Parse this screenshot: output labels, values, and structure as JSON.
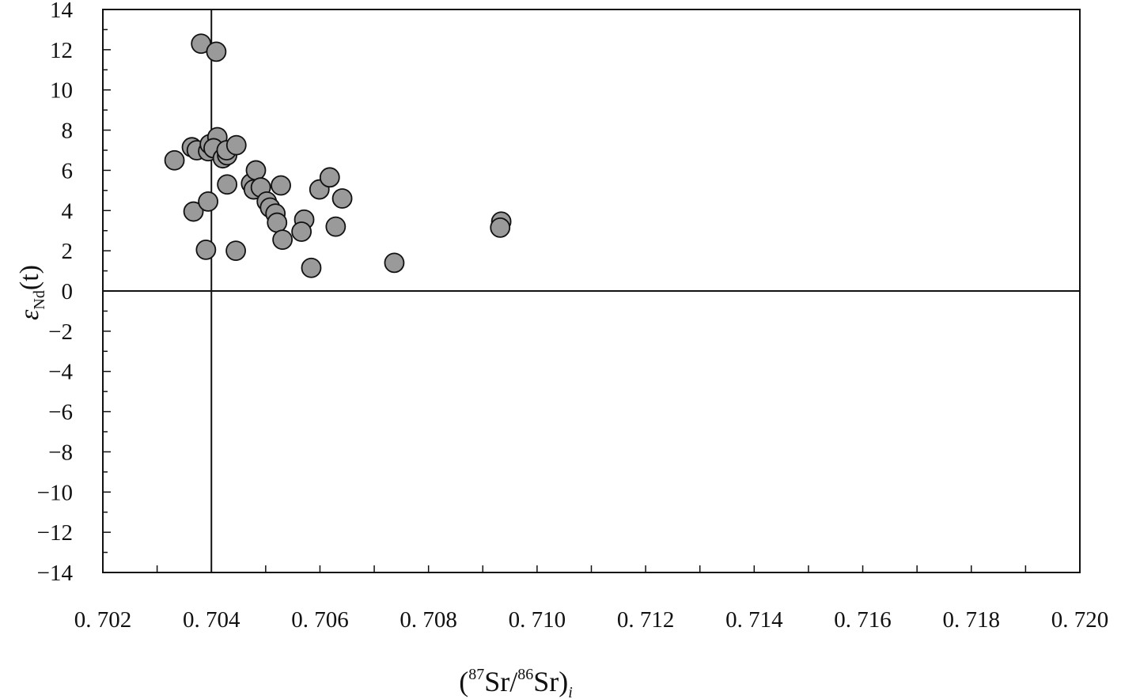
{
  "chart_data": {
    "type": "scatter",
    "xlabel": "(87Sr/86Sr)i",
    "xlabel_parts": {
      "open": "(",
      "sup1": "87",
      "mid": "Sr/",
      "sup2": "86",
      "close": "Sr)",
      "sub": "i"
    },
    "ylabel": "εNd(t)",
    "ylabel_parts": {
      "eps": "ε",
      "sub": "Nd",
      "rest": "(t)"
    },
    "xlim": [
      0.702,
      0.72
    ],
    "ylim": [
      -14,
      14
    ],
    "x_ticks": [
      "0. 702",
      "0. 704",
      "0. 706",
      "0. 708",
      "0. 710",
      "0. 712",
      "0. 714",
      "0. 716",
      "0. 718",
      "0. 720"
    ],
    "y_ticks": [
      "14",
      "12",
      "10",
      "8",
      "6",
      "4",
      "2",
      "0",
      "−2",
      "−4",
      "−6",
      "−8",
      "−10",
      "−12",
      "−14"
    ],
    "reference_lines": {
      "x": 0.704,
      "y": 0
    },
    "marker_color": "#9a9a9a",
    "grid": false,
    "points": [
      {
        "x": 0.70381,
        "y": 12.3
      },
      {
        "x": 0.70409,
        "y": 11.9
      },
      {
        "x": 0.70332,
        "y": 6.5
      },
      {
        "x": 0.70364,
        "y": 7.15
      },
      {
        "x": 0.70373,
        "y": 7.0
      },
      {
        "x": 0.70394,
        "y": 6.95
      },
      {
        "x": 0.70397,
        "y": 7.3
      },
      {
        "x": 0.70411,
        "y": 7.65
      },
      {
        "x": 0.70404,
        "y": 7.1
      },
      {
        "x": 0.70421,
        "y": 6.6
      },
      {
        "x": 0.70429,
        "y": 6.75
      },
      {
        "x": 0.70428,
        "y": 7.0
      },
      {
        "x": 0.70446,
        "y": 7.25
      },
      {
        "x": 0.70367,
        "y": 3.95
      },
      {
        "x": 0.70394,
        "y": 4.45
      },
      {
        "x": 0.7039,
        "y": 2.05
      },
      {
        "x": 0.70445,
        "y": 2.0
      },
      {
        "x": 0.70429,
        "y": 5.3
      },
      {
        "x": 0.70473,
        "y": 5.35
      },
      {
        "x": 0.70478,
        "y": 5.05
      },
      {
        "x": 0.70482,
        "y": 6.0
      },
      {
        "x": 0.70491,
        "y": 5.15
      },
      {
        "x": 0.70528,
        "y": 5.25
      },
      {
        "x": 0.70502,
        "y": 4.45
      },
      {
        "x": 0.70508,
        "y": 4.15
      },
      {
        "x": 0.70518,
        "y": 3.85
      },
      {
        "x": 0.70521,
        "y": 3.4
      },
      {
        "x": 0.70531,
        "y": 2.55
      },
      {
        "x": 0.70571,
        "y": 3.55
      },
      {
        "x": 0.70566,
        "y": 2.95
      },
      {
        "x": 0.70584,
        "y": 1.15
      },
      {
        "x": 0.70599,
        "y": 5.05
      },
      {
        "x": 0.70618,
        "y": 5.65
      },
      {
        "x": 0.70629,
        "y": 3.2
      },
      {
        "x": 0.70641,
        "y": 4.6
      },
      {
        "x": 0.70737,
        "y": 1.4
      },
      {
        "x": 0.70934,
        "y": 3.45
      },
      {
        "x": 0.70932,
        "y": 3.15
      }
    ]
  }
}
